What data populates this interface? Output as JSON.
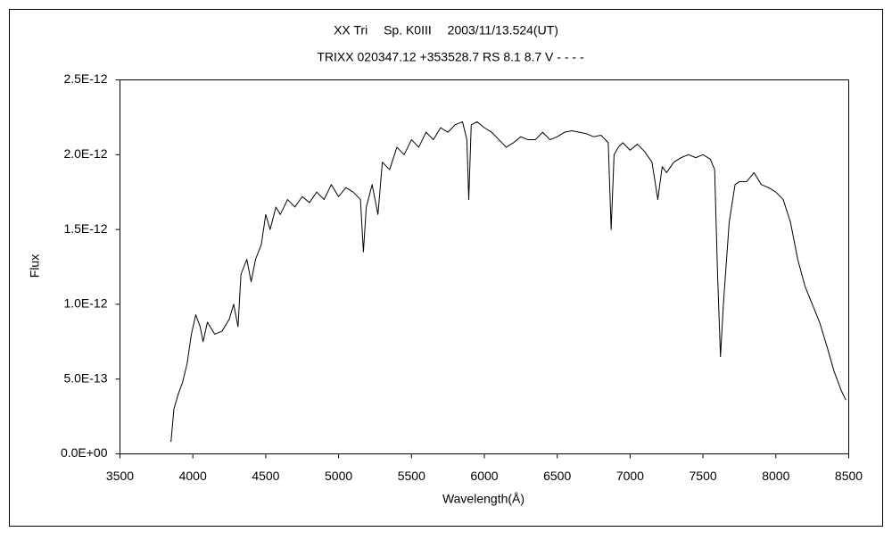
{
  "chart_data": {
    "type": "line",
    "title": "XX Tri　 Sp. K0III　 2003/11/13.524(UT)",
    "subtitle": "TRIXX 020347.12 +353528.7 RS 8.1 8.7 V - - - -",
    "x_label": "Wavelength(Å)",
    "y_label": "Flux",
    "color": "#000000",
    "xlim": [
      3500,
      8500
    ],
    "xticks": [
      3500,
      4000,
      4500,
      5000,
      5500,
      6000,
      6500,
      7000,
      7500,
      8000,
      8500
    ],
    "ylim": [
      0,
      2.5e-12
    ],
    "yticks": [
      {
        "value": 0,
        "label": "0.0E+00"
      },
      {
        "value": 5e-13,
        "label": "5.0E-13"
      },
      {
        "value": 1e-12,
        "label": "1.0E-12"
      },
      {
        "value": 1.5e-12,
        "label": "1.5E-12"
      },
      {
        "value": 2e-12,
        "label": "2.0E-12"
      },
      {
        "value": 2.5e-12,
        "label": "2.5E-12"
      }
    ],
    "grid": false,
    "x": [
      3850,
      3870,
      3900,
      3930,
      3960,
      3990,
      4020,
      4050,
      4070,
      4100,
      4150,
      4200,
      4250,
      4280,
      4310,
      4330,
      4370,
      4400,
      4430,
      4470,
      4500,
      4530,
      4570,
      4600,
      4650,
      4700,
      4750,
      4800,
      4850,
      4900,
      4950,
      5000,
      5050,
      5100,
      5150,
      5170,
      5190,
      5230,
      5270,
      5300,
      5350,
      5400,
      5450,
      5500,
      5550,
      5600,
      5650,
      5700,
      5750,
      5800,
      5850,
      5880,
      5893,
      5910,
      5950,
      6000,
      6050,
      6100,
      6150,
      6200,
      6250,
      6300,
      6350,
      6400,
      6450,
      6500,
      6550,
      6600,
      6650,
      6700,
      6750,
      6800,
      6850,
      6870,
      6890,
      6920,
      6950,
      7000,
      7050,
      7100,
      7150,
      7190,
      7220,
      7250,
      7300,
      7350,
      7400,
      7450,
      7500,
      7550,
      7580,
      7600,
      7620,
      7640,
      7680,
      7720,
      7750,
      7800,
      7850,
      7900,
      7950,
      8000,
      8050,
      8100,
      8150,
      8200,
      8250,
      8300,
      8350,
      8400,
      8450,
      8480
    ],
    "values": [
      8e-14,
      3e-13,
      4e-13,
      4.8e-13,
      6e-13,
      8e-13,
      9.3e-13,
      8.5e-13,
      7.5e-13,
      8.8e-13,
      8e-13,
      8.2e-13,
      9e-13,
      1e-12,
      8.5e-13,
      1.2e-12,
      1.3e-12,
      1.15e-12,
      1.3e-12,
      1.4e-12,
      1.6e-12,
      1.5e-12,
      1.65e-12,
      1.6e-12,
      1.7e-12,
      1.65e-12,
      1.72e-12,
      1.68e-12,
      1.75e-12,
      1.7e-12,
      1.8e-12,
      1.72e-12,
      1.78e-12,
      1.75e-12,
      1.7e-12,
      1.35e-12,
      1.65e-12,
      1.8e-12,
      1.6e-12,
      1.95e-12,
      1.9e-12,
      2.05e-12,
      2e-12,
      2.1e-12,
      2.05e-12,
      2.15e-12,
      2.1e-12,
      2.18e-12,
      2.15e-12,
      2.2e-12,
      2.22e-12,
      2.1e-12,
      1.7e-12,
      2.2e-12,
      2.22e-12,
      2.18e-12,
      2.15e-12,
      2.1e-12,
      2.05e-12,
      2.08e-12,
      2.12e-12,
      2.1e-12,
      2.1e-12,
      2.15e-12,
      2.1e-12,
      2.12e-12,
      2.15e-12,
      2.16e-12,
      2.15e-12,
      2.14e-12,
      2.12e-12,
      2.13e-12,
      2.08e-12,
      1.5e-12,
      2e-12,
      2.05e-12,
      2.08e-12,
      2.03e-12,
      2.07e-12,
      2.02e-12,
      1.95e-12,
      1.7e-12,
      1.92e-12,
      1.88e-12,
      1.95e-12,
      1.98e-12,
      2e-12,
      1.98e-12,
      2e-12,
      1.97e-12,
      1.9e-12,
      1.2e-12,
      6.5e-13,
      1e-12,
      1.55e-12,
      1.8e-12,
      1.82e-12,
      1.82e-12,
      1.88e-12,
      1.8e-12,
      1.78e-12,
      1.75e-12,
      1.7e-12,
      1.55e-12,
      1.3e-12,
      1.12e-12,
      1e-12,
      8.8e-13,
      7.2e-13,
      5.5e-13,
      4.2e-13,
      3.6e-13
    ]
  }
}
